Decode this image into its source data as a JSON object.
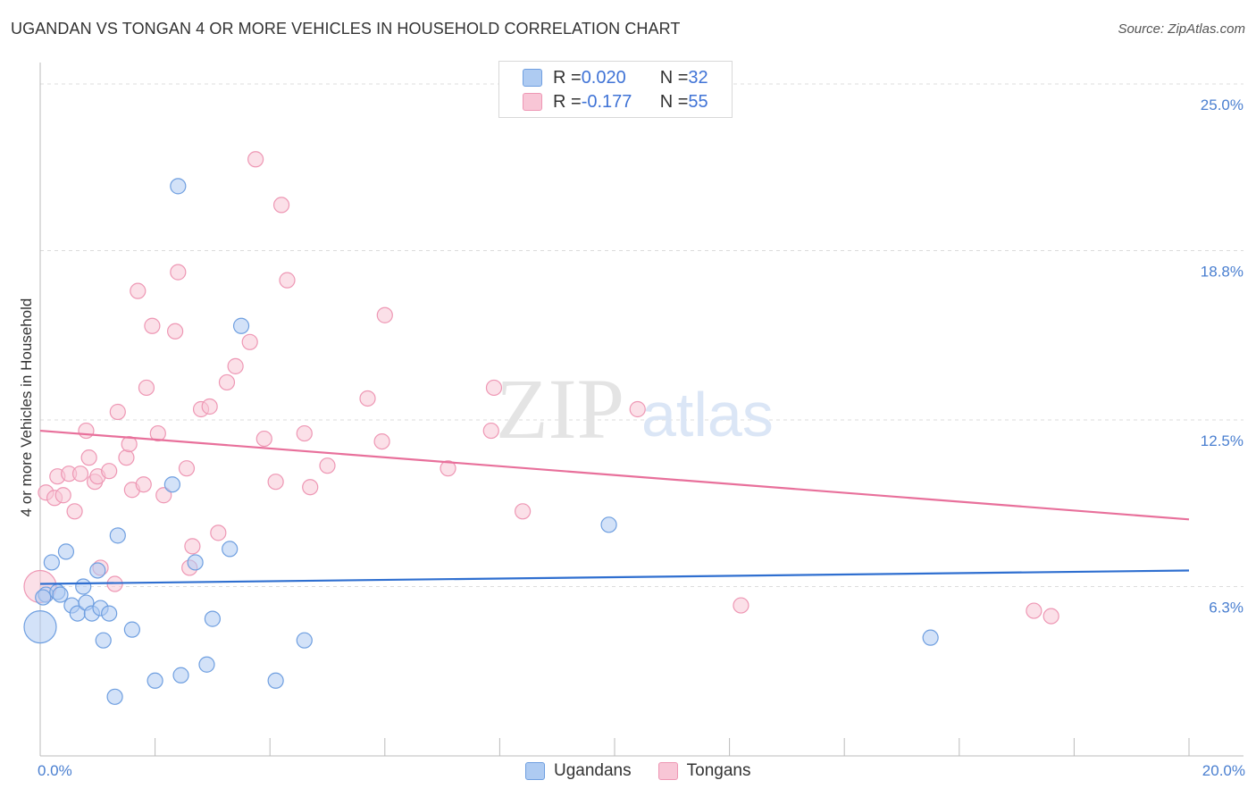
{
  "title": "UGANDAN VS TONGAN 4 OR MORE VEHICLES IN HOUSEHOLD CORRELATION CHART",
  "source": "Source: ZipAtlas.com",
  "watermark": {
    "zip": "ZIP",
    "atlas": "atlas"
  },
  "legend": {
    "ugandans": {
      "r_label": "R = ",
      "r_value": "0.020",
      "n_label": "N = ",
      "n_value": "32"
    },
    "tongans": {
      "r_label": "R = ",
      "r_value": "-0.177",
      "n_label": "N = ",
      "n_value": "55"
    }
  },
  "bottom_legend": {
    "ugandans": "Ugandans",
    "tongans": "Tongans"
  },
  "colors": {
    "ugandans_fill": "#aecbf2",
    "ugandans_stroke": "#6f9fe0",
    "ugandans_line": "#2f6fd0",
    "tongans_fill": "#f8c6d6",
    "tongans_stroke": "#ee97b4",
    "tongans_line": "#e8709b",
    "tick_label": "#4a7fd0",
    "grid": "#dcdcdc"
  },
  "chart_data": {
    "type": "scatter",
    "title": "UGANDAN VS TONGAN 4 OR MORE VEHICLES IN HOUSEHOLD CORRELATION CHART",
    "xlabel": "",
    "ylabel": "4 or more Vehicles in Household",
    "xlim": [
      0,
      20
    ],
    "ylim": [
      0,
      25.8
    ],
    "x_tick_labels": [
      "0.0%",
      "20.0%"
    ],
    "y_ticks": [
      {
        "value": 6.3,
        "label": "6.3%"
      },
      {
        "value": 12.5,
        "label": "12.5%"
      },
      {
        "value": 18.8,
        "label": "18.8%"
      },
      {
        "value": 25.0,
        "label": "25.0%"
      }
    ],
    "series": [
      {
        "name": "Ugandans",
        "r": 0.02,
        "n": 32,
        "trend": {
          "x": [
            0,
            20
          ],
          "y": [
            6.4,
            6.9
          ]
        },
        "points": [
          {
            "x": 0.0,
            "y": 4.8,
            "big": true
          },
          {
            "x": 0.1,
            "y": 6.0
          },
          {
            "x": 0.2,
            "y": 7.2
          },
          {
            "x": 0.3,
            "y": 6.1
          },
          {
            "x": 0.35,
            "y": 6.0
          },
          {
            "x": 0.45,
            "y": 7.6
          },
          {
            "x": 0.55,
            "y": 5.6
          },
          {
            "x": 0.65,
            "y": 5.3
          },
          {
            "x": 0.75,
            "y": 6.3
          },
          {
            "x": 0.8,
            "y": 5.7
          },
          {
            "x": 0.9,
            "y": 5.3
          },
          {
            "x": 1.0,
            "y": 6.9
          },
          {
            "x": 1.05,
            "y": 5.5
          },
          {
            "x": 1.1,
            "y": 4.3
          },
          {
            "x": 1.2,
            "y": 5.3
          },
          {
            "x": 1.3,
            "y": 2.2
          },
          {
            "x": 1.35,
            "y": 8.2
          },
          {
            "x": 1.6,
            "y": 4.7
          },
          {
            "x": 2.0,
            "y": 2.8
          },
          {
            "x": 2.3,
            "y": 10.1
          },
          {
            "x": 2.4,
            "y": 21.2
          },
          {
            "x": 2.45,
            "y": 3.0
          },
          {
            "x": 2.7,
            "y": 7.2
          },
          {
            "x": 2.9,
            "y": 3.4
          },
          {
            "x": 3.0,
            "y": 5.1
          },
          {
            "x": 3.3,
            "y": 7.7
          },
          {
            "x": 3.5,
            "y": 16.0
          },
          {
            "x": 4.1,
            "y": 2.8
          },
          {
            "x": 4.6,
            "y": 4.3
          },
          {
            "x": 9.9,
            "y": 8.6
          },
          {
            "x": 15.5,
            "y": 4.4
          },
          {
            "x": 0.05,
            "y": 5.9
          }
        ]
      },
      {
        "name": "Tongans",
        "r": -0.177,
        "n": 55,
        "trend": {
          "x": [
            0,
            20
          ],
          "y": [
            12.1,
            8.8
          ]
        },
        "points": [
          {
            "x": 0.0,
            "y": 6.3,
            "big": true
          },
          {
            "x": 0.1,
            "y": 9.8
          },
          {
            "x": 0.25,
            "y": 9.6
          },
          {
            "x": 0.3,
            "y": 10.4
          },
          {
            "x": 0.4,
            "y": 9.7
          },
          {
            "x": 0.5,
            "y": 10.5
          },
          {
            "x": 0.6,
            "y": 9.1
          },
          {
            "x": 0.7,
            "y": 10.5
          },
          {
            "x": 0.8,
            "y": 12.1
          },
          {
            "x": 0.85,
            "y": 11.1
          },
          {
            "x": 0.95,
            "y": 10.2
          },
          {
            "x": 1.0,
            "y": 10.4
          },
          {
            "x": 1.05,
            "y": 7.0
          },
          {
            "x": 1.2,
            "y": 10.6
          },
          {
            "x": 1.3,
            "y": 6.4
          },
          {
            "x": 1.35,
            "y": 12.8
          },
          {
            "x": 1.5,
            "y": 11.1
          },
          {
            "x": 1.55,
            "y": 11.6
          },
          {
            "x": 1.6,
            "y": 9.9
          },
          {
            "x": 1.7,
            "y": 17.3
          },
          {
            "x": 1.8,
            "y": 10.1
          },
          {
            "x": 1.85,
            "y": 13.7
          },
          {
            "x": 1.95,
            "y": 16.0
          },
          {
            "x": 2.05,
            "y": 12.0
          },
          {
            "x": 2.15,
            "y": 9.7
          },
          {
            "x": 2.35,
            "y": 15.8
          },
          {
            "x": 2.4,
            "y": 18.0
          },
          {
            "x": 2.55,
            "y": 10.7
          },
          {
            "x": 2.6,
            "y": 7.0
          },
          {
            "x": 2.65,
            "y": 7.8
          },
          {
            "x": 2.8,
            "y": 12.9
          },
          {
            "x": 2.95,
            "y": 13.0
          },
          {
            "x": 3.1,
            "y": 8.3
          },
          {
            "x": 3.25,
            "y": 13.9
          },
          {
            "x": 3.4,
            "y": 14.5
          },
          {
            "x": 3.65,
            "y": 15.4
          },
          {
            "x": 3.75,
            "y": 22.2
          },
          {
            "x": 3.9,
            "y": 11.8
          },
          {
            "x": 4.1,
            "y": 10.2
          },
          {
            "x": 4.2,
            "y": 20.5
          },
          {
            "x": 4.3,
            "y": 17.7
          },
          {
            "x": 4.6,
            "y": 12.0
          },
          {
            "x": 4.7,
            "y": 10.0
          },
          {
            "x": 5.0,
            "y": 10.8
          },
          {
            "x": 5.7,
            "y": 13.3
          },
          {
            "x": 5.95,
            "y": 11.7
          },
          {
            "x": 6.0,
            "y": 16.4
          },
          {
            "x": 7.1,
            "y": 10.7
          },
          {
            "x": 7.85,
            "y": 12.1
          },
          {
            "x": 7.9,
            "y": 13.7
          },
          {
            "x": 8.4,
            "y": 9.1
          },
          {
            "x": 10.4,
            "y": 12.9
          },
          {
            "x": 12.2,
            "y": 5.6
          },
          {
            "x": 17.3,
            "y": 5.4
          },
          {
            "x": 17.6,
            "y": 5.2
          }
        ]
      }
    ]
  }
}
